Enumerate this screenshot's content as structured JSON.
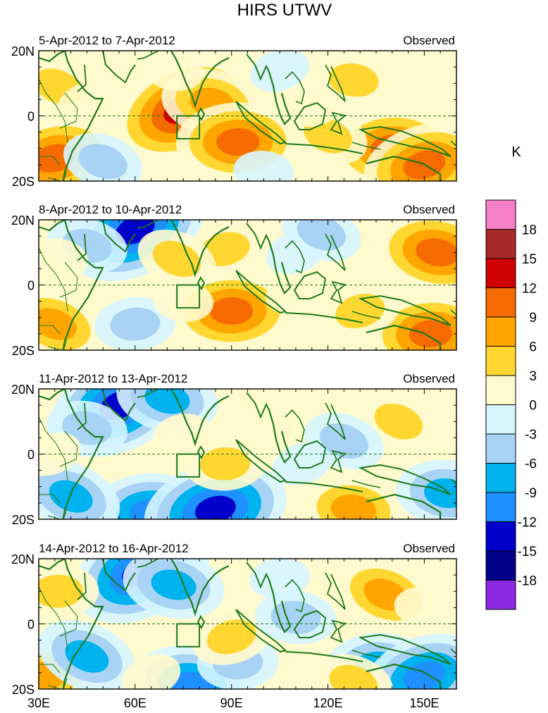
{
  "chart_data": {
    "type": "heatmap",
    "title": "HIRS UTWV",
    "units": "K",
    "colorbar": {
      "levels": [
        "18",
        "15",
        "12",
        "9",
        "6",
        "3",
        "0",
        "-3",
        "-6",
        "-9",
        "-12",
        "-15",
        "-18"
      ],
      "colors": [
        "#f77fc6",
        "#a52a2a",
        "#d10000",
        "#f56b00",
        "#ffa500",
        "#ffd730",
        "#fffacd",
        "#d6f5ff",
        "#a9d3f5",
        "#00b2ee",
        "#1e90ff",
        "#0000cd",
        "#00008b",
        "#8a2be2"
      ]
    },
    "x_axis": {
      "ticks": [
        "30E",
        "60E",
        "90E",
        "120E",
        "150E"
      ],
      "values": [
        30,
        60,
        90,
        120,
        150
      ],
      "range": [
        30,
        160
      ]
    },
    "y_axis": {
      "ticks": [
        "20N",
        "0",
        "20S"
      ],
      "values": [
        20,
        0,
        -20
      ],
      "range": [
        -20,
        20
      ]
    },
    "panels": [
      {
        "period": "5-Apr-2012 to 7-Apr-2012",
        "label": "Observed",
        "features": [
          {
            "lon": 75,
            "lat": 2,
            "value": 16
          },
          {
            "lon": 84,
            "lat": 4,
            "value": 9
          },
          {
            "lon": 92,
            "lat": -8,
            "value": 13
          },
          {
            "lon": 35,
            "lat": -13,
            "value": 12
          },
          {
            "lon": 36,
            "lat": 9,
            "value": 7
          },
          {
            "lon": 72,
            "lat": 14,
            "value": 4
          },
          {
            "lon": 140,
            "lat": -10,
            "value": 12
          },
          {
            "lon": 150,
            "lat": -15,
            "value": 13
          },
          {
            "lon": 120,
            "lat": -6,
            "value": 6
          },
          {
            "lon": 128,
            "lat": 11,
            "value": 5
          },
          {
            "lon": 150,
            "lat": 12,
            "value": 4
          },
          {
            "lon": 105,
            "lat": 14,
            "value": -4
          },
          {
            "lon": 50,
            "lat": -14,
            "value": -5
          },
          {
            "lon": 100,
            "lat": -17,
            "value": -4
          },
          {
            "lon": 115,
            "lat": 3,
            "value": 2
          },
          {
            "lon": 45,
            "lat": 4,
            "value": 2
          }
        ]
      },
      {
        "period": "8-Apr-2012 to 10-Apr-2012",
        "label": "Observed",
        "features": [
          {
            "lon": 60,
            "lat": 17,
            "value": -14
          },
          {
            "lon": 45,
            "lat": 12,
            "value": -6
          },
          {
            "lon": 90,
            "lat": -8,
            "value": 12
          },
          {
            "lon": 88,
            "lat": 11,
            "value": 6
          },
          {
            "lon": 73,
            "lat": 8,
            "value": 5
          },
          {
            "lon": 154,
            "lat": 10,
            "value": 13
          },
          {
            "lon": 152,
            "lat": -15,
            "value": 12
          },
          {
            "lon": 130,
            "lat": -8,
            "value": 7
          },
          {
            "lon": 35,
            "lat": -12,
            "value": 8
          },
          {
            "lon": 36,
            "lat": 8,
            "value": 2
          },
          {
            "lon": 60,
            "lat": -12,
            "value": -6
          },
          {
            "lon": 110,
            "lat": 10,
            "value": -4
          },
          {
            "lon": 118,
            "lat": 16,
            "value": -5
          },
          {
            "lon": 75,
            "lat": -5,
            "value": 2
          },
          {
            "lon": 110,
            "lat": -3,
            "value": 3
          }
        ]
      },
      {
        "period": "11-Apr-2012 to 13-Apr-2012",
        "label": "Observed",
        "features": [
          {
            "lon": 55,
            "lat": 15,
            "value": -15
          },
          {
            "lon": 70,
            "lat": 17,
            "value": -9
          },
          {
            "lon": 65,
            "lat": -18,
            "value": -13
          },
          {
            "lon": 85,
            "lat": -17,
            "value": -14
          },
          {
            "lon": 40,
            "lat": -13,
            "value": -9
          },
          {
            "lon": 45,
            "lat": 8,
            "value": -6
          },
          {
            "lon": 88,
            "lat": -3,
            "value": 6
          },
          {
            "lon": 100,
            "lat": 12,
            "value": 3
          },
          {
            "lon": 142,
            "lat": 10,
            "value": 7
          },
          {
            "lon": 128,
            "lat": -17,
            "value": 10
          },
          {
            "lon": 145,
            "lat": -8,
            "value": 4
          },
          {
            "lon": 112,
            "lat": -3,
            "value": -4
          },
          {
            "lon": 125,
            "lat": 4,
            "value": -7
          },
          {
            "lon": 157,
            "lat": -12,
            "value": -9
          },
          {
            "lon": 75,
            "lat": 6,
            "value": 2
          },
          {
            "lon": 34,
            "lat": 0,
            "value": 3
          }
        ]
      },
      {
        "period": "14-Apr-2012 to 16-Apr-2012",
        "label": "Observed",
        "features": [
          {
            "lon": 62,
            "lat": 16,
            "value": -16
          },
          {
            "lon": 72,
            "lat": 12,
            "value": -8
          },
          {
            "lon": 36,
            "lat": 10,
            "value": 7
          },
          {
            "lon": 32,
            "lat": -16,
            "value": 9
          },
          {
            "lon": 45,
            "lat": -10,
            "value": -8
          },
          {
            "lon": 78,
            "lat": -19,
            "value": -13
          },
          {
            "lon": 92,
            "lat": -12,
            "value": -5
          },
          {
            "lon": 90,
            "lat": -4,
            "value": 5
          },
          {
            "lon": 138,
            "lat": 9,
            "value": 8
          },
          {
            "lon": 150,
            "lat": 5,
            "value": 3
          },
          {
            "lon": 135,
            "lat": -13,
            "value": -9
          },
          {
            "lon": 150,
            "lat": -16,
            "value": -12
          },
          {
            "lon": 128,
            "lat": -18,
            "value": 5
          },
          {
            "lon": 110,
            "lat": 2,
            "value": -5
          },
          {
            "lon": 105,
            "lat": 14,
            "value": -3
          },
          {
            "lon": 65,
            "lat": -16,
            "value": 4
          }
        ]
      }
    ]
  }
}
